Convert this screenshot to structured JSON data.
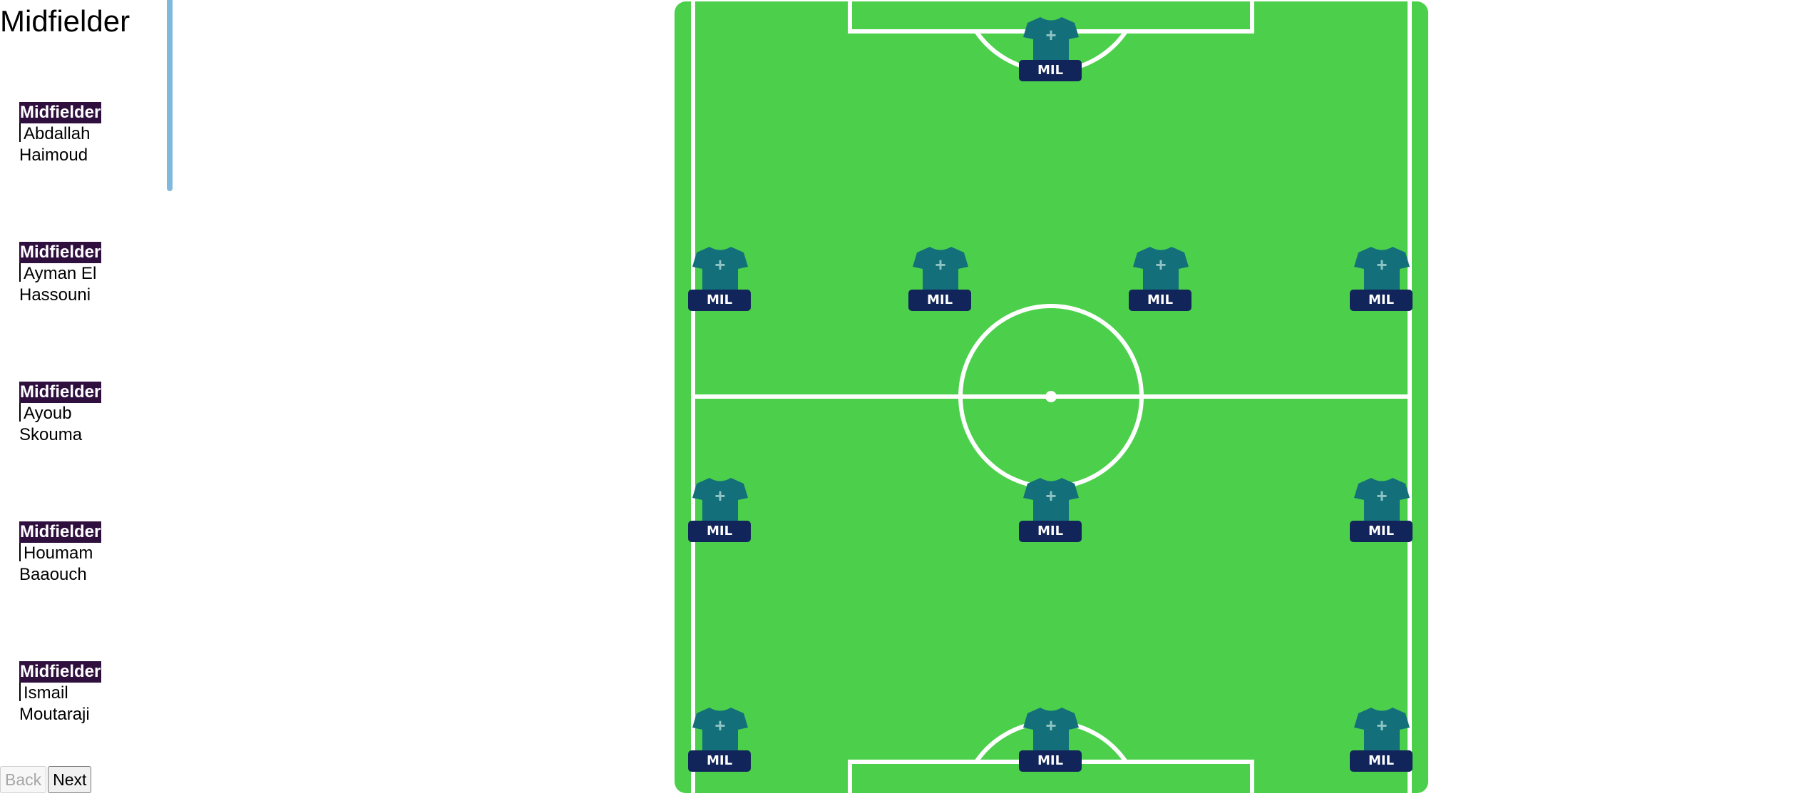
{
  "sidebar": {
    "title": "Midfielder",
    "players": [
      {
        "position": "Midfielder",
        "name": "Abdallah Haimoud"
      },
      {
        "position": "Midfielder",
        "name": "Ayman El Hassouni"
      },
      {
        "position": "Midfielder",
        "name": "Ayoub Skouma"
      },
      {
        "position": "Midfielder",
        "name": "Houmam Baaouch"
      },
      {
        "position": "Midfielder",
        "name": "Ismail Moutaraji"
      }
    ]
  },
  "nav": {
    "back_label": "Back",
    "next_label": "Next"
  },
  "pitch": {
    "colors": {
      "grass": "#4cd04c",
      "line": "#ffffff",
      "jersey": "#13707a",
      "tag": "#11255a"
    },
    "slots": [
      {
        "label": "MIL",
        "icon": "plus"
      },
      {
        "label": "MIL",
        "icon": "plus"
      },
      {
        "label": "MIL",
        "icon": "plus"
      },
      {
        "label": "MIL",
        "icon": "plus"
      },
      {
        "label": "MIL",
        "icon": "plus"
      },
      {
        "label": "MIL",
        "icon": "plus"
      },
      {
        "label": "MIL",
        "icon": "plus"
      },
      {
        "label": "MIL",
        "icon": "plus"
      },
      {
        "label": "MIL",
        "icon": "plus"
      },
      {
        "label": "MIL",
        "icon": "plus"
      },
      {
        "label": "MIL",
        "icon": "plus"
      }
    ]
  }
}
